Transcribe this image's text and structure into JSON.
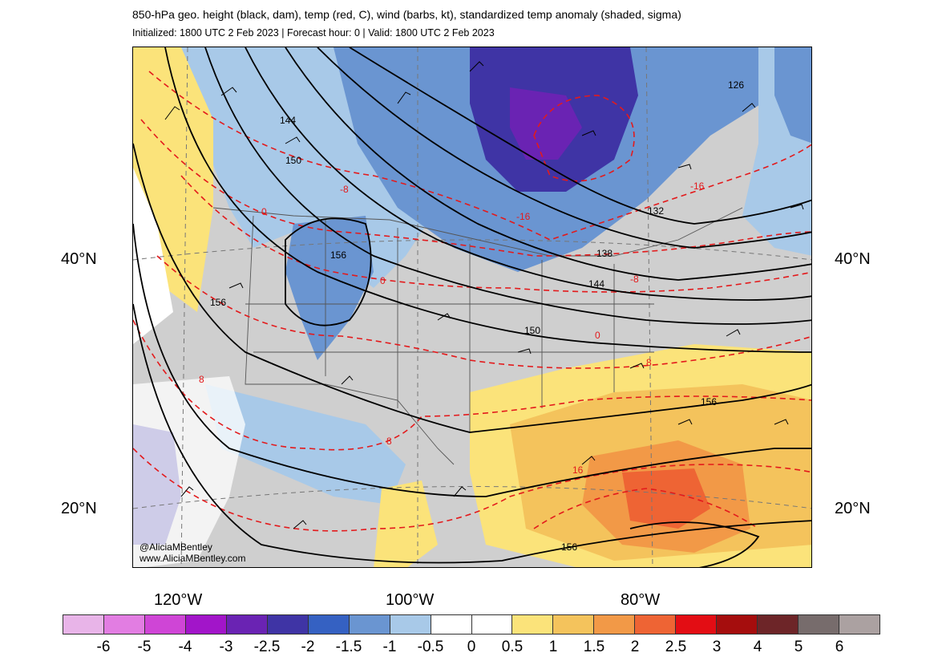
{
  "header": {
    "title": "850-hPa geo. height (black, dam), temp (red, C), wind (barbs, kt), standardized temp anomaly (shaded, sigma)",
    "subtitle": "Initialized: 1800 UTC 2 Feb 2023 | Forecast hour: 0 | Valid: 1800 UTC 2 Feb 2023"
  },
  "axes": {
    "lat_labels": [
      "40°N",
      "20°N"
    ],
    "lon_labels": [
      "120°W",
      "100°W",
      "80°W"
    ]
  },
  "contour_labels": {
    "height": [
      "126",
      "132",
      "138",
      "144",
      "144",
      "150",
      "150",
      "156",
      "156",
      "156",
      "156"
    ],
    "temp": [
      "-16",
      "-16",
      "-8",
      "-8",
      "0",
      "0",
      "0",
      "8",
      "8",
      "8",
      "16"
    ]
  },
  "credit": {
    "handle": "@AliciaMBentley",
    "site": "www.AliciaMBentley.com"
  },
  "colorbar": {
    "colors": [
      "#e8b4e8",
      "#e27de2",
      "#cf45d6",
      "#a215c9",
      "#6a23b3",
      "#3f34a5",
      "#3561c2",
      "#6a95d1",
      "#a8c9e8",
      "#ffffff",
      "#ffffff",
      "#fbe37a",
      "#f4c35c",
      "#f29947",
      "#ee6434",
      "#e30d14",
      "#a50d0d",
      "#6d2528",
      "#776c6c",
      "#aba1a1"
    ],
    "tick_labels": [
      "-6",
      "-5",
      "-4",
      "-3",
      "-2.5",
      "-2",
      "-1.5",
      "-1",
      "-0.5",
      "0",
      "0.5",
      "1",
      "1.5",
      "2",
      "2.5",
      "3",
      "4",
      "5",
      "6"
    ]
  }
}
